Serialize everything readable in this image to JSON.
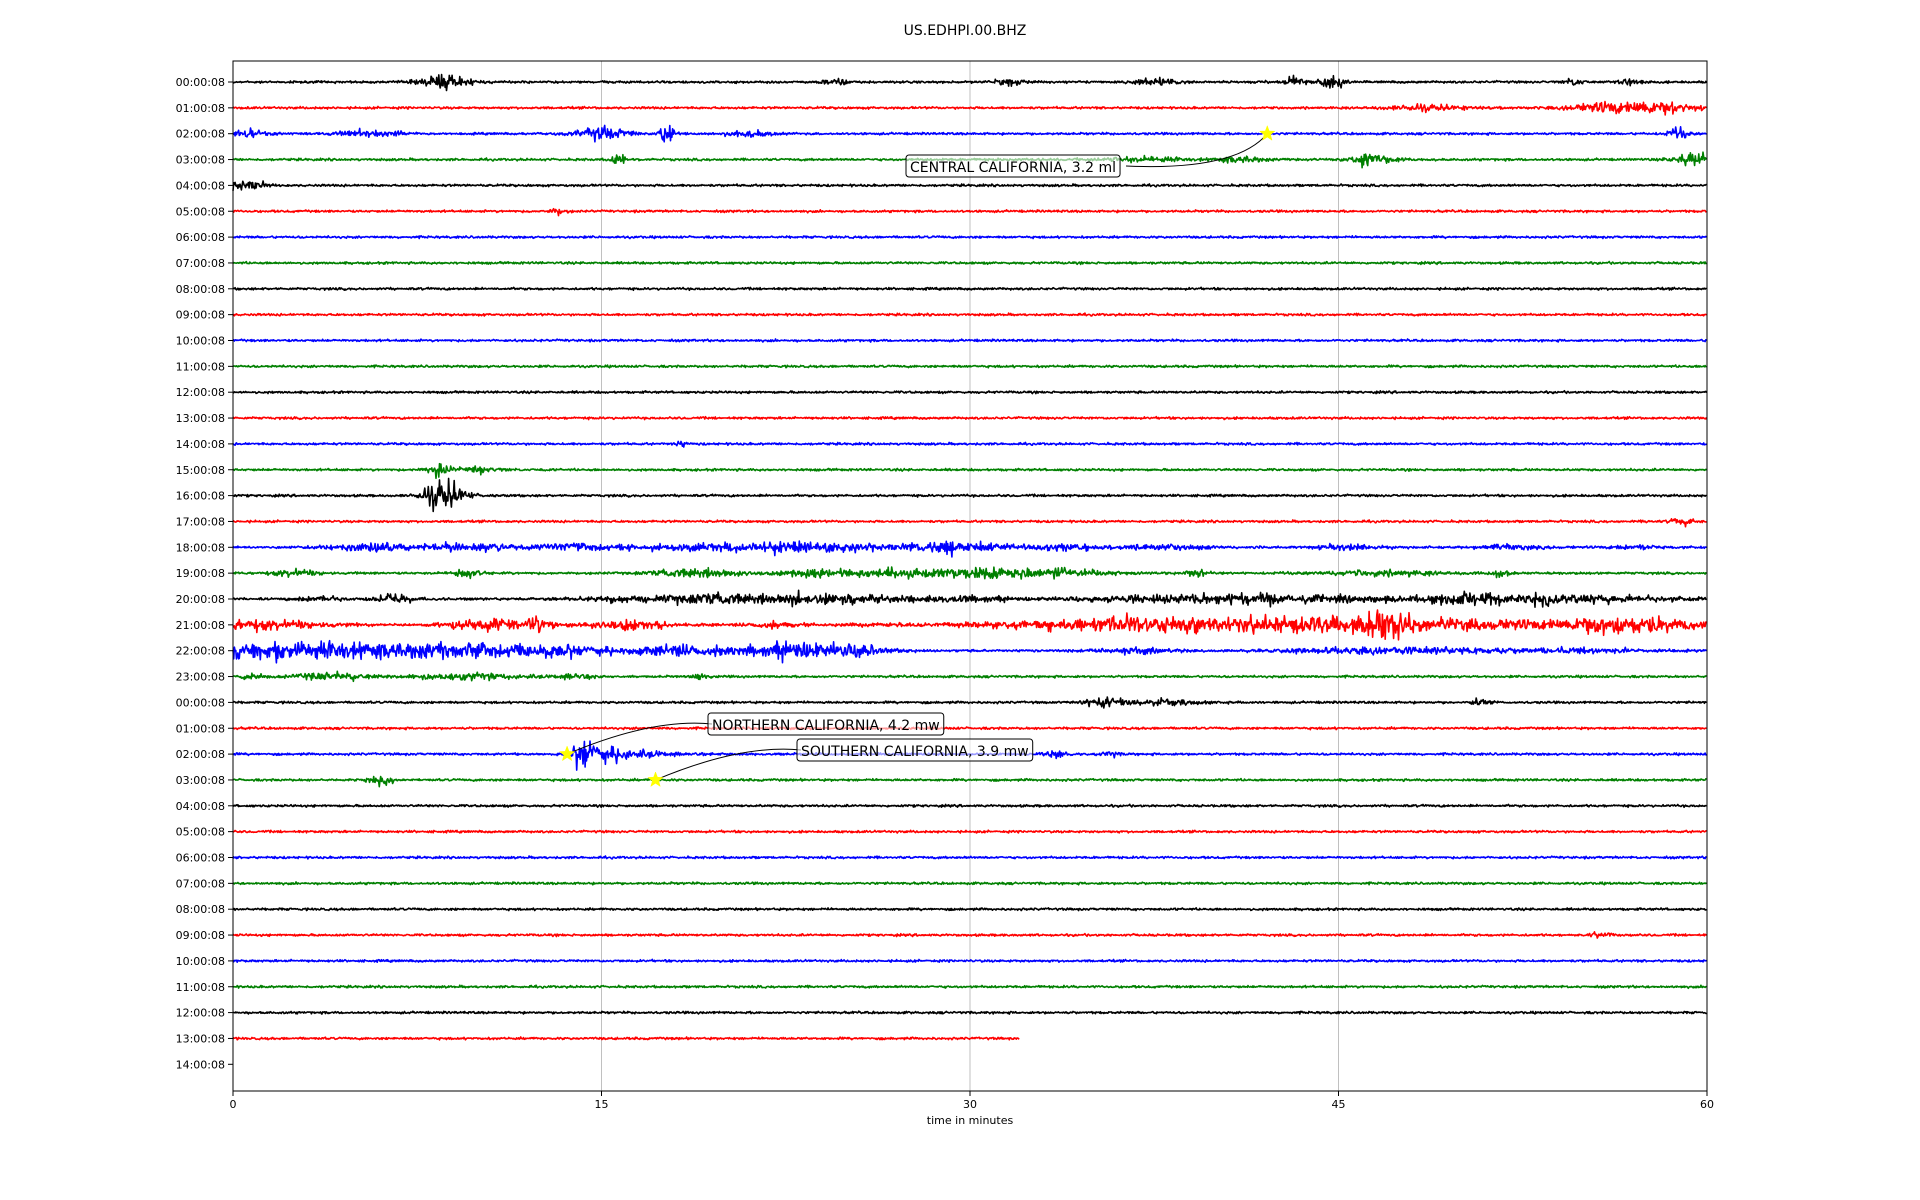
{
  "chart_data": {
    "type": "line",
    "title": "US.EDHPI.00.BHZ",
    "xlabel": "time in minutes",
    "ylabel": "",
    "xlim": [
      0,
      60
    ],
    "x_ticks": [
      0,
      15,
      30,
      45,
      60
    ],
    "grid": "vertical",
    "row_labels": [
      "00:00:08",
      "01:00:08",
      "02:00:08",
      "03:00:08",
      "04:00:08",
      "05:00:08",
      "06:00:08",
      "07:00:08",
      "08:00:08",
      "09:00:08",
      "10:00:08",
      "11:00:08",
      "12:00:08",
      "13:00:08",
      "14:00:08",
      "15:00:08",
      "16:00:08",
      "17:00:08",
      "18:00:08",
      "19:00:08",
      "20:00:08",
      "21:00:08",
      "22:00:08",
      "23:00:08",
      "00:00:08",
      "01:00:08",
      "02:00:08",
      "03:00:08",
      "04:00:08",
      "05:00:08",
      "06:00:08",
      "07:00:08",
      "08:00:08",
      "09:00:08",
      "10:00:08",
      "11:00:08",
      "12:00:08",
      "13:00:08",
      "14:00:08"
    ],
    "trace_colors": [
      "#000000",
      "#ff0000",
      "#0000ff",
      "#008000"
    ],
    "traces": [
      {
        "row": 0,
        "end_minute": 60,
        "bursts": [
          [
            8.5,
            1.0,
            4
          ],
          [
            9,
            1,
            2
          ],
          [
            24.5,
            0.6,
            2
          ],
          [
            31.5,
            0.6,
            2
          ],
          [
            37.5,
            1.0,
            3
          ],
          [
            43.2,
            0.6,
            4
          ],
          [
            44.7,
            0.6,
            4
          ],
          [
            54.6,
            0.4,
            2
          ],
          [
            57,
            0.6,
            2
          ]
        ]
      },
      {
        "row": 1,
        "end_minute": 60,
        "bursts": [
          [
            48.5,
            2,
            1.5
          ],
          [
            55.5,
            1,
            1.5
          ],
          [
            57.5,
            2.5,
            4
          ]
        ]
      },
      {
        "row": 2,
        "end_minute": 60,
        "bursts": [
          [
            15,
            1.2,
            4
          ],
          [
            17.6,
            0.3,
            8
          ],
          [
            0.5,
            1,
            2
          ],
          [
            5.5,
            1.5,
            2
          ],
          [
            21,
            1,
            2
          ],
          [
            58.8,
            0.5,
            3
          ]
        ]
      },
      {
        "row": 3,
        "end_minute": 60,
        "bursts": [
          [
            15.7,
            0.3,
            5
          ],
          [
            37,
            2,
            1.5
          ],
          [
            41,
            1,
            2
          ],
          [
            46,
            0.8,
            3
          ],
          [
            47,
            0.8,
            2
          ],
          [
            59.5,
            1,
            4
          ]
        ]
      },
      {
        "row": 4,
        "end_minute": 60,
        "bursts": [
          [
            0.3,
            0.6,
            3
          ],
          [
            1,
            0.4,
            2
          ]
        ]
      },
      {
        "row": 5,
        "end_minute": 60,
        "bursts": [
          [
            13.2,
            0.4,
            2
          ]
        ]
      },
      {
        "row": 6,
        "end_minute": 60,
        "bursts": []
      },
      {
        "row": 7,
        "end_minute": 60,
        "bursts": []
      },
      {
        "row": 8,
        "end_minute": 60,
        "bursts": []
      },
      {
        "row": 9,
        "end_minute": 60,
        "bursts": []
      },
      {
        "row": 10,
        "end_minute": 60,
        "bursts": []
      },
      {
        "row": 11,
        "end_minute": 60,
        "bursts": []
      },
      {
        "row": 12,
        "end_minute": 60,
        "bursts": []
      },
      {
        "row": 13,
        "end_minute": 60,
        "bursts": []
      },
      {
        "row": 14,
        "end_minute": 60,
        "bursts": [
          [
            18.2,
            0.3,
            1.5
          ]
        ]
      },
      {
        "row": 15,
        "end_minute": 60,
        "bursts": [
          [
            8.4,
            0.5,
            4
          ],
          [
            10,
            1,
            1.5
          ]
        ]
      },
      {
        "row": 16,
        "end_minute": 60,
        "bursts": [
          [
            8.6,
            0.9,
            9
          ]
        ]
      },
      {
        "row": 17,
        "end_minute": 60,
        "bursts": [
          [
            59,
            0.5,
            2
          ]
        ]
      },
      {
        "row": 18,
        "end_minute": 60,
        "bursts": [
          [
            5.5,
            2,
            2.5
          ],
          [
            9.5,
            2,
            2.5
          ],
          [
            14,
            2,
            2
          ],
          [
            22,
            6,
            3
          ],
          [
            29.5,
            2,
            3.5
          ],
          [
            33.5,
            2,
            2
          ],
          [
            38,
            2,
            1.5
          ],
          [
            45.5,
            1.5,
            1.5
          ],
          [
            52,
            1.5,
            1.5
          ],
          [
            57,
            1,
            1.5
          ]
        ]
      },
      {
        "row": 19,
        "end_minute": 60,
        "bursts": [
          [
            2.5,
            1,
            2.5
          ],
          [
            9.5,
            0.6,
            3
          ],
          [
            19,
            2,
            3
          ],
          [
            23.5,
            1,
            2
          ],
          [
            27.5,
            4,
            3
          ],
          [
            32.5,
            3,
            3.5
          ],
          [
            39.2,
            0.5,
            2
          ],
          [
            47,
            3,
            1.5
          ],
          [
            51.5,
            0.5,
            2
          ]
        ]
      },
      {
        "row": 20,
        "end_minute": 60,
        "bursts": [
          [
            3.5,
            1,
            2
          ],
          [
            6.5,
            1,
            2.5
          ],
          [
            19.5,
            5,
            3
          ],
          [
            25,
            4,
            2
          ],
          [
            30,
            2,
            1.5
          ],
          [
            40.5,
            6,
            3
          ],
          [
            50,
            1,
            2
          ],
          [
            53,
            6,
            3
          ]
        ]
      },
      {
        "row": 21,
        "end_minute": 60,
        "bursts": [
          [
            1,
            3,
            3.5
          ],
          [
            10.5,
            2,
            3.5
          ],
          [
            12.5,
            0.5,
            4
          ],
          [
            16,
            2,
            3
          ],
          [
            22,
            1,
            2
          ],
          [
            37,
            3,
            2
          ],
          [
            43.5,
            13,
            5
          ],
          [
            47,
            0.8,
            9
          ],
          [
            56.8,
            3,
            5
          ]
        ]
      },
      {
        "row": 22,
        "end_minute": 60,
        "bursts": [
          [
            2,
            5,
            5
          ],
          [
            10,
            6,
            5
          ],
          [
            19,
            3,
            3
          ],
          [
            23,
            2,
            5
          ],
          [
            25.5,
            1.5,
            3
          ],
          [
            36.5,
            2,
            1.5
          ],
          [
            45,
            3,
            1.5
          ],
          [
            49.5,
            3,
            2
          ],
          [
            55,
            3,
            1.5
          ]
        ]
      },
      {
        "row": 23,
        "end_minute": 60,
        "bursts": [
          [
            0.8,
            0.4,
            3
          ],
          [
            4,
            2,
            2
          ],
          [
            9.5,
            2.5,
            2
          ],
          [
            14,
            1,
            1.5
          ],
          [
            19,
            0.4,
            2
          ]
        ]
      },
      {
        "row": 24,
        "end_minute": 60,
        "bursts": [
          [
            35.5,
            1,
            3
          ],
          [
            38,
            1.5,
            2
          ],
          [
            50.7,
            0.4,
            2
          ]
        ]
      },
      {
        "row": 25,
        "end_minute": 60,
        "bursts": []
      },
      {
        "row": 26,
        "end_minute": 60,
        "bursts": [
          [
            14.3,
            0.5,
            9
          ],
          [
            15.3,
            1,
            4
          ],
          [
            16.5,
            2,
            1.5
          ],
          [
            33.5,
            0.6,
            2
          ],
          [
            35.8,
            0.4,
            2
          ]
        ]
      },
      {
        "row": 27,
        "end_minute": 60,
        "bursts": [
          [
            6,
            0.6,
            2.5
          ]
        ]
      },
      {
        "row": 28,
        "end_minute": 60,
        "bursts": []
      },
      {
        "row": 29,
        "end_minute": 60,
        "bursts": []
      },
      {
        "row": 30,
        "end_minute": 60,
        "bursts": []
      },
      {
        "row": 31,
        "end_minute": 60,
        "bursts": []
      },
      {
        "row": 32,
        "end_minute": 60,
        "bursts": []
      },
      {
        "row": 33,
        "end_minute": 60,
        "bursts": [
          [
            55.7,
            0.5,
            1.5
          ]
        ]
      },
      {
        "row": 34,
        "end_minute": 60,
        "bursts": []
      },
      {
        "row": 35,
        "end_minute": 60,
        "bursts": []
      },
      {
        "row": 36,
        "end_minute": 60,
        "bursts": []
      },
      {
        "row": 37,
        "end_minute": 32,
        "bursts": []
      }
    ],
    "events": [
      {
        "label": "CENTRAL CALIFORNIA, 3.2 ml",
        "minute": 42.1,
        "row": 2
      },
      {
        "label": "NORTHERN CALIFORNIA, 4.2 mw",
        "minute": 13.6,
        "row": 26
      },
      {
        "label": "SOUTHERN CALIFORNIA, 3.9 mw",
        "minute": 17.2,
        "row": 27
      }
    ],
    "event_marker_color": "#ffff00"
  }
}
